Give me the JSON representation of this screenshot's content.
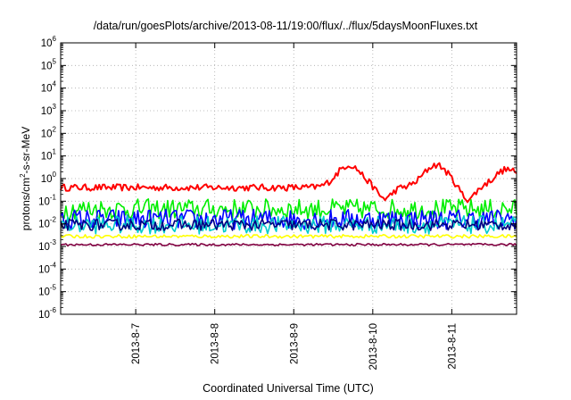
{
  "chart_data": {
    "type": "line",
    "title": "/data/run/goesPlots/archive/2013-08-11/19:00/flux/../flux/5daysMoonFluxes.txt",
    "xlabel": "Coordinated Universal Time (UTC)",
    "ylabel": "protons/cm2-s-sr-MeV",
    "ylabel_parts": {
      "a": "protons/cm",
      "sup": "2",
      "b": "-s-sr-MeV"
    },
    "yscale": "log",
    "ylim": [
      1e-06,
      1000000.0
    ],
    "y_tick_labels": [
      {
        "base": "10",
        "exp": "-6"
      },
      {
        "base": "10",
        "exp": "-5"
      },
      {
        "base": "10",
        "exp": "-4"
      },
      {
        "base": "10",
        "exp": "-3"
      },
      {
        "base": "10",
        "exp": "-2"
      },
      {
        "base": "10",
        "exp": "-1"
      },
      {
        "base": "10",
        "exp": "0"
      },
      {
        "base": "10",
        "exp": "1"
      },
      {
        "base": "10",
        "exp": "2"
      },
      {
        "base": "10",
        "exp": "3"
      },
      {
        "base": "10",
        "exp": "4"
      },
      {
        "base": "10",
        "exp": "5"
      },
      {
        "base": "10",
        "exp": "6"
      }
    ],
    "x_range_days": [
      6.05,
      11.82
    ],
    "x_ticks": [
      {
        "label": "2013-8-7",
        "day": 7
      },
      {
        "label": "2013-8-8",
        "day": 8
      },
      {
        "label": "2013-8-9",
        "day": 9
      },
      {
        "label": "2013-8-10",
        "day": 10
      },
      {
        "label": "2013-8-11",
        "day": 11
      }
    ],
    "grid": true,
    "series": [
      {
        "color": "#ff0000",
        "level": 0.4,
        "noise": 0.3,
        "bumps": [
          {
            "day": 9.7,
            "width": 0.22,
            "amp": 1.0
          },
          {
            "day": 10.8,
            "width": 0.22,
            "amp": 1.0
          },
          {
            "day": 11.7,
            "width": 0.22,
            "amp": 0.8
          }
        ],
        "dips": [
          {
            "day": 10.15,
            "width": 0.12,
            "amp": 0.5
          },
          {
            "day": 11.2,
            "width": 0.12,
            "amp": 0.55
          }
        ]
      },
      {
        "color": "#00ee00",
        "level": 0.045,
        "noise": 0.9
      },
      {
        "color": "#0000ff",
        "level": 0.016,
        "noise": 0.9
      },
      {
        "color": "#00cccc",
        "level": 0.009,
        "noise": 0.8
      },
      {
        "color": "#000080",
        "level": 0.009,
        "noise": 0.5
      },
      {
        "color": "#ffff00",
        "level": 0.0028,
        "noise": 0.15
      },
      {
        "color": "#800040",
        "level": 0.0012,
        "noise": 0.1
      }
    ]
  }
}
